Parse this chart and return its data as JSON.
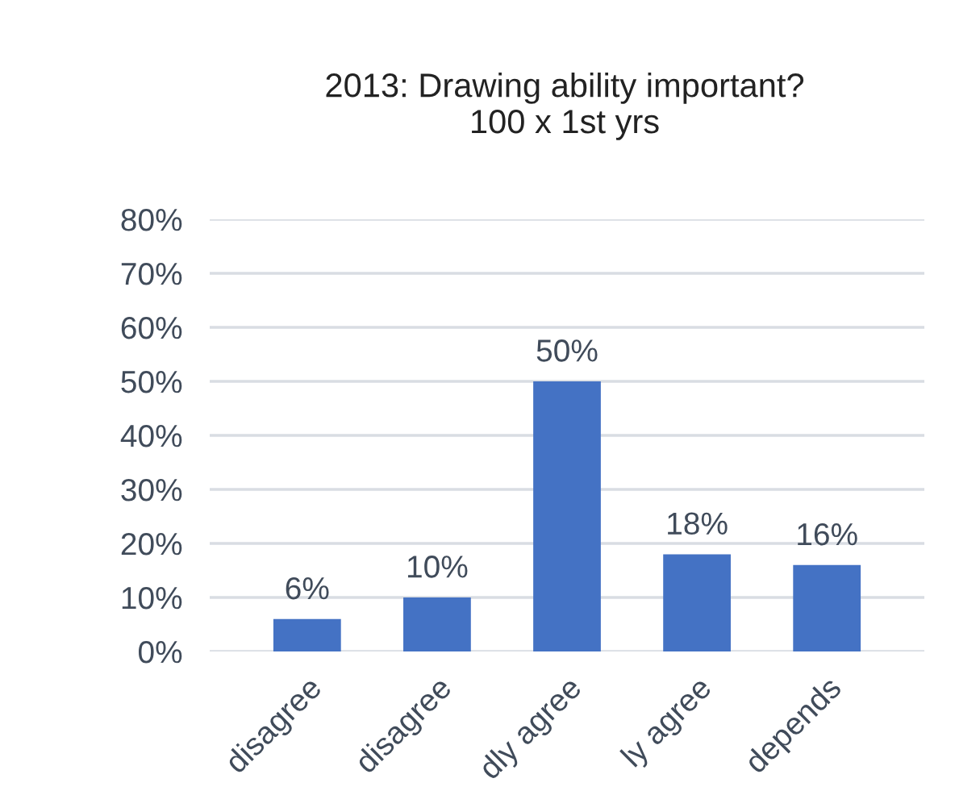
{
  "chart_data": {
    "type": "bar",
    "title": "2013: Drawing ability important?\n100 x 1st yrs",
    "categories": [
      "disagree",
      "disagree",
      "dly agree",
      "ly agree",
      "depends"
    ],
    "values": [
      6,
      10,
      50,
      18,
      16
    ],
    "color": "#4472c4",
    "value_labels": [
      "6%",
      "10%",
      "50%",
      "18%",
      "16%"
    ],
    "ylim": [
      0,
      80
    ],
    "yticks": [
      {
        "value": 0,
        "label": "0%"
      },
      {
        "value": 10,
        "label": "10%"
      },
      {
        "value": 20,
        "label": "20%"
      },
      {
        "value": 30,
        "label": "30%"
      },
      {
        "value": 40,
        "label": "40%"
      },
      {
        "value": 50,
        "label": "50%"
      },
      {
        "value": 60,
        "label": "60%"
      },
      {
        "value": 70,
        "label": "70%"
      },
      {
        "value": 80,
        "label": "80%"
      }
    ],
    "grid": "y",
    "legend": false
  }
}
